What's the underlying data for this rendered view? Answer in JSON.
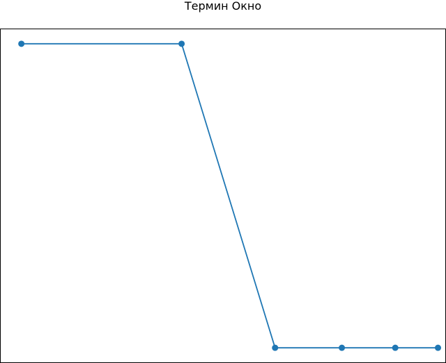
{
  "chart_data": {
    "type": "line",
    "title": "Термин Окно",
    "xlabel": "",
    "ylabel": "",
    "x": [
      1,
      4,
      5.75,
      7,
      8,
      8.8
    ],
    "series": [
      {
        "values": [
          1.0,
          1.0,
          0.0,
          0.0,
          0.0,
          0.0
        ],
        "color": "#1f77b4"
      }
    ],
    "xlim": [
      0.6,
      8.95
    ],
    "ylim": [
      -0.05,
      1.05
    ],
    "grid": false,
    "ticks_visible": false,
    "markers": "circle"
  }
}
